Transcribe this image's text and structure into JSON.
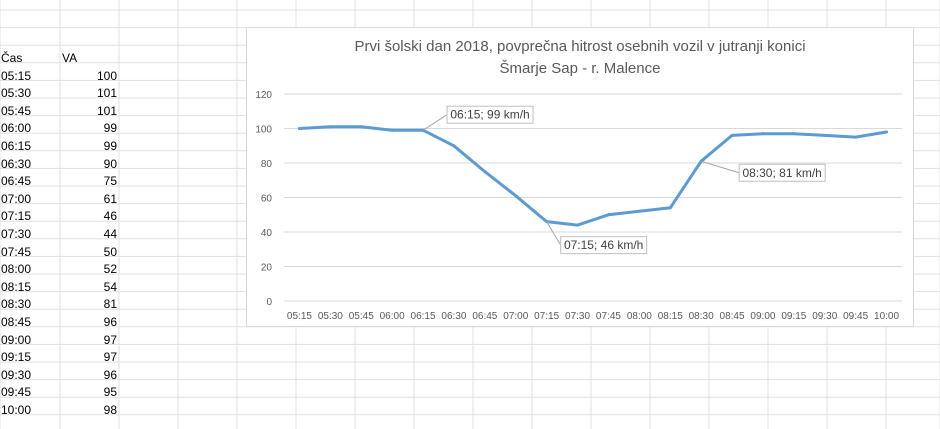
{
  "sheet": {
    "headers": {
      "time": "Čas",
      "value": "VA"
    },
    "rows": [
      {
        "time": "05:15",
        "value": "100"
      },
      {
        "time": "05:30",
        "value": "101"
      },
      {
        "time": "05:45",
        "value": "101"
      },
      {
        "time": "06:00",
        "value": "99"
      },
      {
        "time": "06:15",
        "value": "99"
      },
      {
        "time": "06:30",
        "value": "90"
      },
      {
        "time": "06:45",
        "value": "75"
      },
      {
        "time": "07:00",
        "value": "61"
      },
      {
        "time": "07:15",
        "value": "46"
      },
      {
        "time": "07:30",
        "value": "44"
      },
      {
        "time": "07:45",
        "value": "50"
      },
      {
        "time": "08:00",
        "value": "52"
      },
      {
        "time": "08:15",
        "value": "54"
      },
      {
        "time": "08:30",
        "value": "81"
      },
      {
        "time": "08:45",
        "value": "96"
      },
      {
        "time": "09:00",
        "value": "97"
      },
      {
        "time": "09:15",
        "value": "97"
      },
      {
        "time": "09:30",
        "value": "96"
      },
      {
        "time": "09:45",
        "value": "95"
      },
      {
        "time": "10:00",
        "value": "98"
      }
    ]
  },
  "chart_data": {
    "type": "line",
    "title": "Prvi šolski dan 2018, povprečna hitrost osebnih vozil v jutranji konici",
    "subtitle": "Šmarje Sap - r. Malence",
    "xlabel": "",
    "ylabel": "",
    "categories": [
      "05:15",
      "05:30",
      "05:45",
      "06:00",
      "06:15",
      "06:30",
      "06:45",
      "07:00",
      "07:15",
      "07:30",
      "07:45",
      "08:00",
      "08:15",
      "08:30",
      "08:45",
      "09:00",
      "09:15",
      "09:30",
      "09:45",
      "10:00"
    ],
    "series": [
      {
        "values": [
          100,
          101,
          101,
          99,
          99,
          90,
          75,
          61,
          46,
          44,
          50,
          52,
          54,
          81,
          96,
          97,
          97,
          96,
          95,
          98
        ]
      }
    ],
    "ylim": [
      0,
      120
    ],
    "yticks": [
      0,
      20,
      40,
      60,
      80,
      100,
      120
    ],
    "grid": true,
    "legend": "none",
    "line_color": "#5b9bd5",
    "annotations": [
      {
        "category": "06:15",
        "text": "06:15; 99 km/h"
      },
      {
        "category": "07:15",
        "text": "07:15; 46 km/h"
      },
      {
        "category": "08:30",
        "text": "08:30; 81 km/h"
      }
    ]
  }
}
